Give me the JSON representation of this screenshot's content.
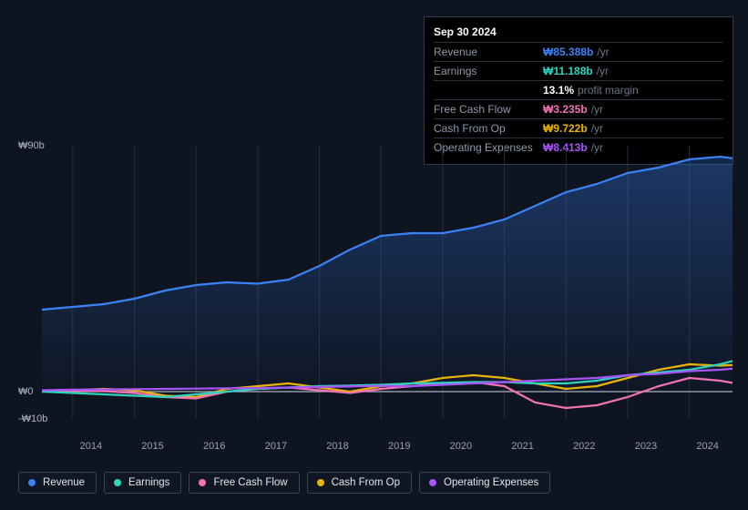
{
  "tooltip": {
    "date": "Sep 30 2024",
    "rows": [
      {
        "label": "Revenue",
        "value": "₩85.388b",
        "unit": "/yr",
        "color": "#3b82f6"
      },
      {
        "label": "Earnings",
        "value": "₩11.188b",
        "unit": "/yr",
        "color": "#2dd4bf"
      },
      {
        "label": "",
        "value": "13.1%",
        "unit": "profit margin",
        "color": "#ffffff"
      },
      {
        "label": "Free Cash Flow",
        "value": "₩3.235b",
        "unit": "/yr",
        "color": "#f472b6"
      },
      {
        "label": "Cash From Op",
        "value": "₩9.722b",
        "unit": "/yr",
        "color": "#eab308"
      },
      {
        "label": "Operating Expenses",
        "value": "₩8.413b",
        "unit": "/yr",
        "color": "#a855f7"
      }
    ]
  },
  "chart": {
    "type": "line-area",
    "background_color": "#0e1420",
    "grid_color": "#262d3d",
    "zero_line_color": "#aab0bf",
    "label_color": "#aeb5c4",
    "label_fontsize": 11,
    "x_years": [
      2014,
      2015,
      2016,
      2017,
      2018,
      2019,
      2020,
      2021,
      2022,
      2023,
      2024
    ],
    "x_range": [
      2013.5,
      2024.7
    ],
    "y_range": [
      -10,
      90
    ],
    "y_ticks": [
      {
        "v": 90,
        "label": "₩90b"
      },
      {
        "v": 0,
        "label": "₩0"
      },
      {
        "v": -10,
        "label": "-₩10b"
      }
    ],
    "series": [
      {
        "name": "Revenue",
        "color": "#3b82f6",
        "area": true,
        "area_top": "rgba(59,130,246,0.32)",
        "area_bottom": "rgba(59,130,246,0.02)",
        "x": [
          2013.5,
          2014,
          2014.5,
          2015,
          2015.5,
          2016,
          2016.5,
          2017,
          2017.5,
          2018,
          2018.5,
          2019,
          2019.5,
          2020,
          2020.5,
          2021,
          2021.5,
          2022,
          2022.5,
          2023,
          2023.5,
          2024,
          2024.5,
          2024.7
        ],
        "y": [
          30,
          31,
          32,
          34,
          37,
          39,
          40,
          39.5,
          41,
          46,
          52,
          57,
          58,
          58,
          60,
          63,
          68,
          73,
          76,
          80,
          82,
          85,
          86,
          85.4
        ]
      },
      {
        "name": "Cash From Op",
        "color": "#eab308",
        "x": [
          2013.5,
          2014,
          2014.5,
          2015,
          2015.5,
          2016,
          2016.5,
          2017,
          2017.5,
          2018,
          2018.5,
          2019,
          2019.5,
          2020,
          2020.5,
          2021,
          2021.5,
          2022,
          2022.5,
          2023,
          2023.5,
          2024,
          2024.5,
          2024.7
        ],
        "y": [
          0,
          0.5,
          1,
          0.5,
          -1.5,
          -2,
          1,
          2,
          3,
          1.5,
          0,
          2,
          3,
          5,
          6,
          5,
          3,
          1,
          2,
          5,
          8,
          10,
          9.5,
          9.7
        ]
      },
      {
        "name": "Free Cash Flow",
        "color": "#f472b6",
        "x": [
          2013.5,
          2014,
          2014.5,
          2015,
          2015.5,
          2016,
          2016.5,
          2017,
          2017.5,
          2018,
          2018.5,
          2019,
          2019.5,
          2020,
          2020.5,
          2021,
          2021.5,
          2022,
          2022.5,
          2023,
          2023.5,
          2024,
          2024.5,
          2024.7
        ],
        "y": [
          0,
          0.3,
          0.2,
          -0.5,
          -2,
          -2.5,
          0,
          1,
          1.5,
          0.5,
          -0.5,
          1,
          2,
          3,
          3.5,
          2,
          -4,
          -6,
          -5,
          -2,
          2,
          5,
          4,
          3.2
        ]
      },
      {
        "name": "Earnings",
        "color": "#2dd4bf",
        "x": [
          2013.5,
          2014,
          2014.5,
          2015,
          2015.5,
          2016,
          2016.5,
          2017,
          2017.5,
          2018,
          2018.5,
          2019,
          2019.5,
          2020,
          2020.5,
          2021,
          2021.5,
          2022,
          2022.5,
          2023,
          2023.5,
          2024,
          2024.5,
          2024.7
        ],
        "y": [
          0,
          -0.5,
          -1,
          -1.5,
          -2,
          -1,
          0,
          1,
          1.5,
          2,
          2.2,
          2.5,
          3,
          3.2,
          3.5,
          3.5,
          3,
          3,
          4,
          6,
          7,
          8,
          10,
          11.2
        ]
      },
      {
        "name": "Operating Expenses",
        "color": "#a855f7",
        "x": [
          2013.5,
          2014,
          2014.5,
          2015,
          2015.5,
          2016,
          2016.5,
          2017,
          2017.5,
          2018,
          2018.5,
          2019,
          2019.5,
          2020,
          2020.5,
          2021,
          2021.5,
          2022,
          2022.5,
          2023,
          2023.5,
          2024,
          2024.5,
          2024.7
        ],
        "y": [
          0.5,
          0.7,
          0.8,
          0.9,
          1,
          1.1,
          1.2,
          1.3,
          1.5,
          1.7,
          1.9,
          2.1,
          2,
          2.5,
          3,
          3.5,
          4,
          4.5,
          5,
          6,
          6.5,
          7.5,
          8,
          8.4
        ]
      }
    ]
  },
  "legend": [
    {
      "label": "Revenue",
      "color": "#3b82f6"
    },
    {
      "label": "Earnings",
      "color": "#2dd4bf"
    },
    {
      "label": "Free Cash Flow",
      "color": "#f472b6"
    },
    {
      "label": "Cash From Op",
      "color": "#eab308"
    },
    {
      "label": "Operating Expenses",
      "color": "#a855f7"
    }
  ]
}
